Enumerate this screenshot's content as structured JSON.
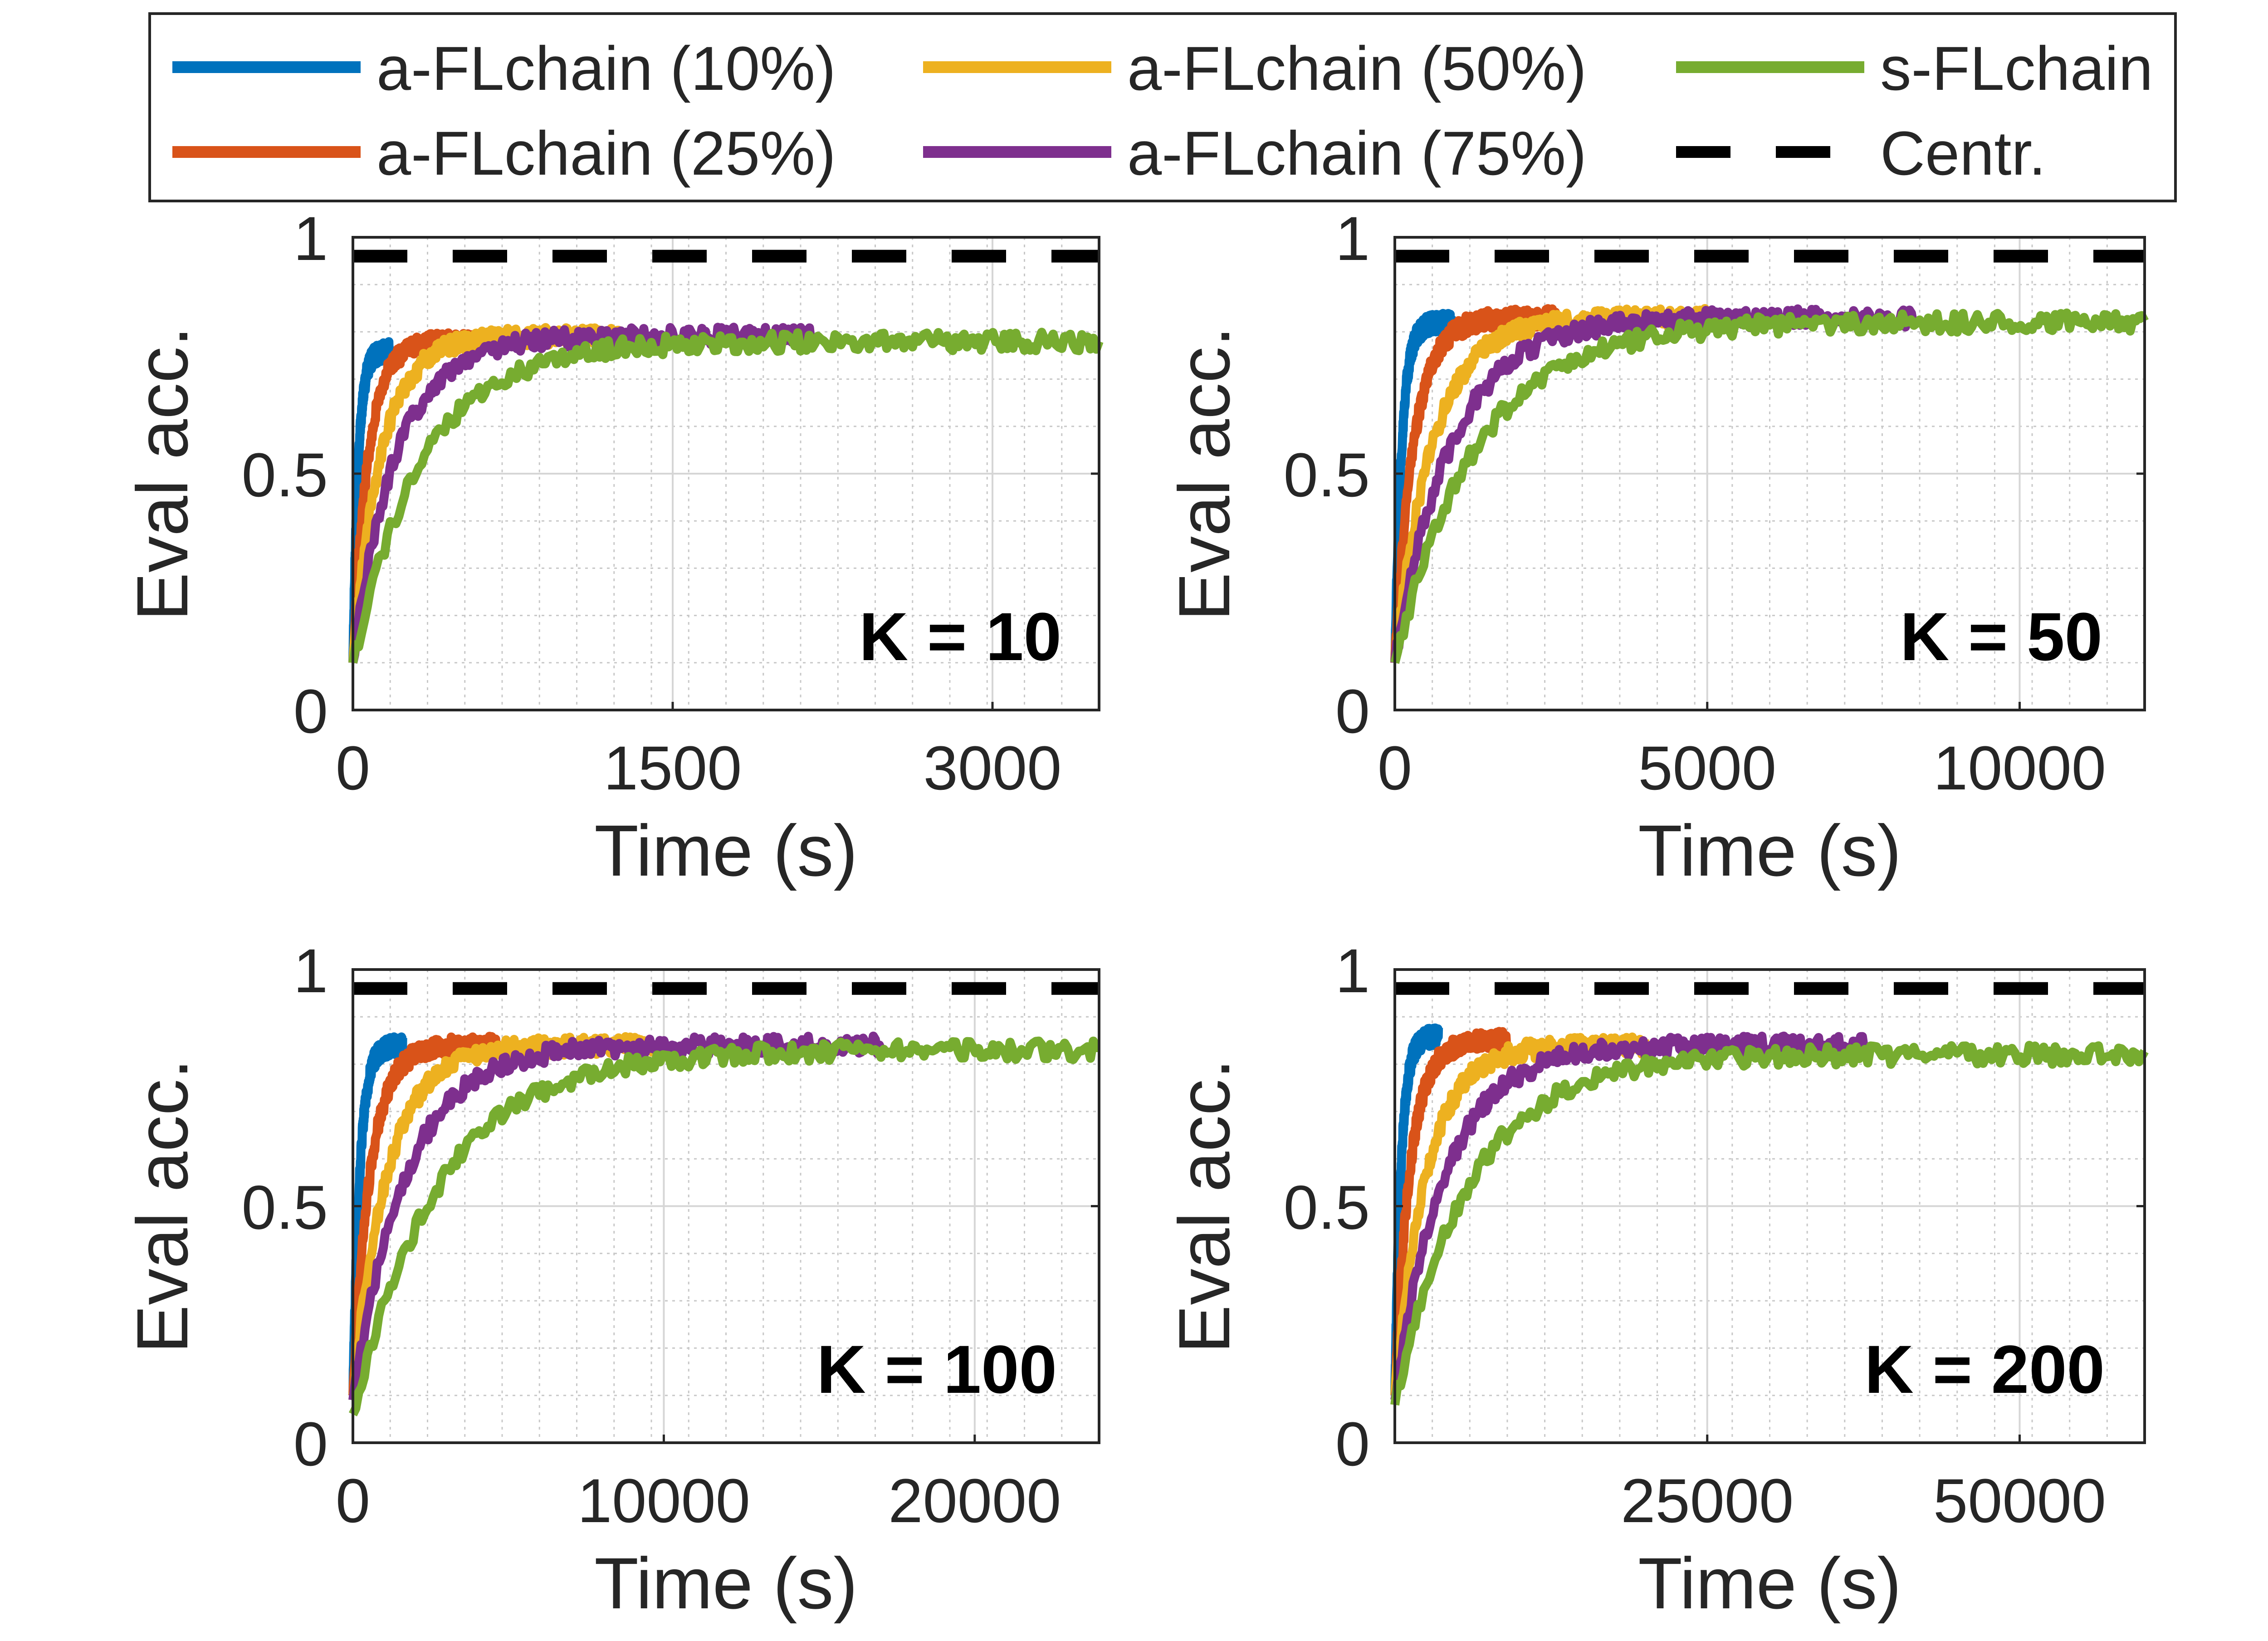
{
  "legend": {
    "entries": [
      {
        "label": "a-FLchain (10%)",
        "color": "#0072BD",
        "dash": false
      },
      {
        "label": "a-FLchain (50%)",
        "color": "#EDB120",
        "dash": false
      },
      {
        "label": "s-FLchain",
        "color": "#77AC30",
        "dash": false
      },
      {
        "label": "a-FLchain (25%)",
        "color": "#D95319",
        "dash": false
      },
      {
        "label": "a-FLchain (75%)",
        "color": "#7E2F8E",
        "dash": false
      },
      {
        "label": "Centr.",
        "color": "#000000",
        "dash": true
      }
    ]
  },
  "chart_data": [
    {
      "type": "line",
      "annotation": "K = 10",
      "xlabel": "Time (s)",
      "ylabel": "Eval acc.",
      "xlim": [
        0,
        3500
      ],
      "ylim": [
        0,
        1
      ],
      "xticks": [
        0,
        1500,
        3000
      ],
      "xtick_labels": [
        "0",
        "1500",
        "3000"
      ],
      "yticks": [
        0,
        0.5,
        1
      ],
      "ytick_labels": [
        "0",
        "0.5",
        "1"
      ],
      "grid": true,
      "centr": 0.96,
      "series": [
        {
          "name": "a-FLchain (10%)",
          "color": "#0072BD",
          "x_end": 170,
          "y_start": 0.1,
          "y_final": 0.76,
          "tau": 25,
          "noise": 0.02
        },
        {
          "name": "a-FLchain (25%)",
          "color": "#D95319",
          "x_end": 600,
          "y_start": 0.1,
          "y_final": 0.78,
          "tau": 70,
          "noise": 0.02
        },
        {
          "name": "a-FLchain (50%)",
          "color": "#EDB120",
          "x_end": 1250,
          "y_start": 0.1,
          "y_final": 0.79,
          "tau": 130,
          "noise": 0.02
        },
        {
          "name": "a-FLchain (75%)",
          "color": "#7E2F8E",
          "x_end": 2150,
          "y_start": 0.1,
          "y_final": 0.79,
          "tau": 200,
          "noise": 0.02
        },
        {
          "name": "s-FLchain",
          "color": "#77AC30",
          "x_end": 3500,
          "y_start": 0.1,
          "y_final": 0.78,
          "tau": 330,
          "noise": 0.02
        }
      ]
    },
    {
      "type": "line",
      "annotation": "K = 50",
      "xlabel": "Time (s)",
      "ylabel": "Eval acc.",
      "xlim": [
        0,
        12000
      ],
      "ylim": [
        0,
        1
      ],
      "xticks": [
        0,
        5000,
        10000
      ],
      "xtick_labels": [
        "0",
        "5000",
        "10000"
      ],
      "yticks": [
        0,
        0.5,
        1
      ],
      "ytick_labels": [
        "0",
        "0.5",
        "1"
      ],
      "grid": true,
      "centr": 0.96,
      "series": [
        {
          "name": "a-FLchain (10%)",
          "color": "#0072BD",
          "x_end": 900,
          "y_start": 0.1,
          "y_final": 0.82,
          "tau": 110,
          "noise": 0.02
        },
        {
          "name": "a-FLchain (25%)",
          "color": "#D95319",
          "x_end": 2600,
          "y_start": 0.1,
          "y_final": 0.83,
          "tau": 300,
          "noise": 0.02
        },
        {
          "name": "a-FLchain (50%)",
          "color": "#EDB120",
          "x_end": 5000,
          "y_start": 0.1,
          "y_final": 0.83,
          "tau": 600,
          "noise": 0.02
        },
        {
          "name": "a-FLchain (75%)",
          "color": "#7E2F8E",
          "x_end": 8300,
          "y_start": 0.1,
          "y_final": 0.83,
          "tau": 900,
          "noise": 0.02
        },
        {
          "name": "s-FLchain",
          "color": "#77AC30",
          "x_end": 12000,
          "y_start": 0.1,
          "y_final": 0.82,
          "tau": 1300,
          "noise": 0.02
        }
      ]
    },
    {
      "type": "line",
      "annotation": "K = 100",
      "xlabel": "Time (s)",
      "ylabel": "Eval acc.",
      "xlim": [
        0,
        24000
      ],
      "ylim": [
        0,
        1
      ],
      "xticks": [
        0,
        10000,
        20000
      ],
      "xtick_labels": [
        "0",
        "10000",
        "20000"
      ],
      "yticks": [
        0,
        0.5,
        1
      ],
      "ytick_labels": [
        "0",
        "0.5",
        "1"
      ],
      "grid": true,
      "centr": 0.96,
      "series": [
        {
          "name": "a-FLchain (10%)",
          "color": "#0072BD",
          "x_end": 1600,
          "y_start": 0.1,
          "y_final": 0.84,
          "tau": 220,
          "noise": 0.02
        },
        {
          "name": "a-FLchain (25%)",
          "color": "#D95319",
          "x_end": 4700,
          "y_start": 0.1,
          "y_final": 0.84,
          "tau": 550,
          "noise": 0.02
        },
        {
          "name": "a-FLchain (50%)",
          "color": "#EDB120",
          "x_end": 9700,
          "y_start": 0.1,
          "y_final": 0.84,
          "tau": 1100,
          "noise": 0.02
        },
        {
          "name": "a-FLchain (75%)",
          "color": "#7E2F8E",
          "x_end": 17000,
          "y_start": 0.09,
          "y_final": 0.84,
          "tau": 1700,
          "noise": 0.02
        },
        {
          "name": "s-FLchain",
          "color": "#77AC30",
          "x_end": 24000,
          "y_start": 0.06,
          "y_final": 0.83,
          "tau": 2800,
          "noise": 0.02
        }
      ]
    },
    {
      "type": "line",
      "annotation": "K = 200",
      "xlabel": "Time (s)",
      "ylabel": "Eval acc.",
      "xlim": [
        0,
        60000
      ],
      "ylim": [
        0,
        1
      ],
      "xticks": [
        25000,
        50000
      ],
      "xtick_labels": [
        "25000",
        "50000"
      ],
      "yticks": [
        0,
        0.5,
        1
      ],
      "ytick_labels": [
        "0",
        "0.5",
        "1"
      ],
      "grid": true,
      "centr": 0.96,
      "series": [
        {
          "name": "a-FLchain (10%)",
          "color": "#0072BD",
          "x_end": 3500,
          "y_start": 0.1,
          "y_final": 0.86,
          "tau": 500,
          "noise": 0.02
        },
        {
          "name": "a-FLchain (25%)",
          "color": "#D95319",
          "x_end": 9000,
          "y_start": 0.1,
          "y_final": 0.85,
          "tau": 1200,
          "noise": 0.02
        },
        {
          "name": "a-FLchain (50%)",
          "color": "#EDB120",
          "x_end": 20000,
          "y_start": 0.1,
          "y_final": 0.84,
          "tau": 2500,
          "noise": 0.02
        },
        {
          "name": "a-FLchain (75%)",
          "color": "#7E2F8E",
          "x_end": 38000,
          "y_start": 0.09,
          "y_final": 0.84,
          "tau": 4000,
          "noise": 0.02
        },
        {
          "name": "s-FLchain",
          "color": "#77AC30",
          "x_end": 60000,
          "y_start": 0.08,
          "y_final": 0.82,
          "tau": 6000,
          "noise": 0.02
        }
      ]
    }
  ]
}
